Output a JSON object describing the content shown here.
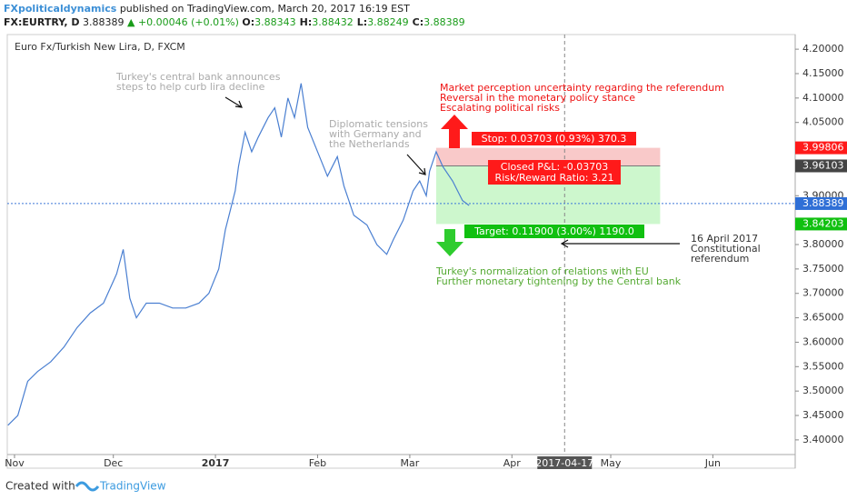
{
  "header": {
    "author": "FXpoliticaldynamics",
    "published": "published on TradingView.com, March 20, 2017 16:19 EST",
    "symbol": "FX:EURTRY, D",
    "last": "3.88389",
    "change": "▲ +0.00046 (+0.01%)",
    "ohlc": [
      [
        "O:",
        "3.88343"
      ],
      [
        "H:",
        "3.88432"
      ],
      [
        "L:",
        "3.88249"
      ],
      [
        "C:",
        "3.88389"
      ]
    ]
  },
  "footer": {
    "created": "Created with",
    "brand": "TradingView"
  },
  "chart_data": {
    "type": "line",
    "title": "Euro Fx/Turkish New Lira, D, FXCM",
    "color": "#4a7fd1",
    "x": [
      -2,
      1,
      4,
      7,
      11,
      15,
      19,
      23,
      27,
      31,
      33,
      35,
      37,
      40,
      44,
      48,
      52,
      56,
      59,
      62,
      64,
      67,
      68,
      70,
      72,
      74,
      77,
      79,
      81,
      83,
      85,
      87,
      89,
      92,
      95,
      98,
      100,
      103,
      107,
      110,
      113,
      115,
      118,
      121,
      123,
      125,
      126,
      128,
      130,
      133,
      136,
      138
    ],
    "values": [
      3.43,
      3.45,
      3.52,
      3.54,
      3.56,
      3.59,
      3.63,
      3.66,
      3.68,
      3.74,
      3.79,
      3.69,
      3.65,
      3.68,
      3.68,
      3.67,
      3.67,
      3.68,
      3.7,
      3.75,
      3.83,
      3.91,
      3.96,
      4.03,
      3.99,
      4.02,
      4.06,
      4.08,
      4.02,
      4.1,
      4.06,
      4.13,
      4.04,
      3.99,
      3.94,
      3.98,
      3.92,
      3.86,
      3.84,
      3.8,
      3.78,
      3.81,
      3.85,
      3.91,
      3.93,
      3.9,
      3.95,
      3.99,
      3.96,
      3.93,
      3.89,
      3.88
    ],
    "xlim": [
      -2.2,
      237
    ],
    "ylim": [
      3.37,
      4.23
    ],
    "xticks": [
      {
        "value": 0,
        "label": "Nov"
      },
      {
        "value": 30,
        "label": "Dec"
      },
      {
        "value": 61,
        "label": "2017"
      },
      {
        "value": 92,
        "label": "Feb"
      },
      {
        "value": 120,
        "label": "Mar"
      },
      {
        "value": 151,
        "label": "Apr"
      },
      {
        "value": 181,
        "label": "May"
      },
      {
        "value": 212,
        "label": "Jun"
      }
    ],
    "yticks": [
      {
        "value": 3.4,
        "label": "3.40000"
      },
      {
        "value": 3.45,
        "label": "3.45000"
      },
      {
        "value": 3.5,
        "label": "3.50000"
      },
      {
        "value": 3.55,
        "label": "3.55000"
      },
      {
        "value": 3.6,
        "label": "3.60000"
      },
      {
        "value": 3.65,
        "label": "3.65000"
      },
      {
        "value": 3.7,
        "label": "3.70000"
      },
      {
        "value": 3.75,
        "label": "3.75000"
      },
      {
        "value": 3.8,
        "label": "3.80000"
      },
      {
        "value": 3.9,
        "label": "3.90000"
      },
      {
        "value": 4.05,
        "label": "4.05000"
      },
      {
        "value": 4.1,
        "label": "4.10000"
      },
      {
        "value": 4.15,
        "label": "4.15000"
      },
      {
        "value": 4.2,
        "label": "4.20000"
      }
    ],
    "last_price": {
      "value": 3.88389,
      "label": "3.88389"
    },
    "marker": {
      "value": 167,
      "label": "2017-04-17"
    },
    "position": {
      "start": 128,
      "end": 196,
      "stop": {
        "value": 3.99806,
        "label": "3.99806"
      },
      "entry": {
        "value": 3.96103,
        "label": "3.96103"
      },
      "target": {
        "value": 3.84203,
        "label": "3.84203"
      },
      "stop_text": "Stop: 0.03703 (0.93%) 370.3",
      "pnl_text": "Closed P&L: -0.03703",
      "rr_text": "Risk/Reward Ratio: 3.21",
      "target_text": "Target: 0.11900 (3.00%) 1190.0"
    },
    "annotations": [
      {
        "color": "#aaaaaa",
        "lines": [
          "Turkey's central bank announces",
          "steps to help curb lira decline"
        ]
      },
      {
        "color": "#aaaaaa",
        "lines": [
          "Diplomatic tensions",
          "with Germany and",
          "the Netherlands"
        ]
      },
      {
        "color": "#ee1111",
        "lines": [
          "Market perception uncertainty regarding the referendum",
          "Reversal in the monetary policy stance",
          "Escalating political risks"
        ]
      },
      {
        "color": "#55aa33",
        "lines": [
          "Turkey's normalization of relations with EU",
          "Further monetary tightening by the Central bank"
        ]
      },
      {
        "color": "#333333",
        "lines": [
          "16 April 2017",
          "Constitutional",
          "referendum"
        ]
      }
    ]
  }
}
